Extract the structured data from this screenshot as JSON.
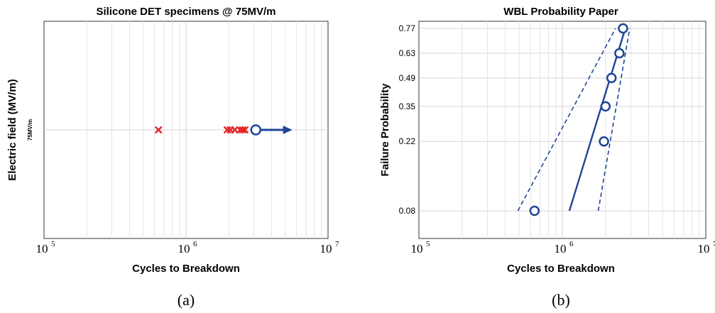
{
  "chart_data": [
    {
      "type": "scatter",
      "panel_label": "(a)",
      "title": "Silicone DET specimens @ 75MV/m",
      "xlabel": "Cycles to Breakdown",
      "ylabel": "Electric field (MV/m)",
      "x_scale": "log",
      "xlim": [
        100000,
        10000000
      ],
      "x_ticks": [
        {
          "base": "10",
          "exp": "5"
        },
        {
          "base": "10",
          "exp": "6"
        },
        {
          "base": "10",
          "exp": "7"
        }
      ],
      "y_tick_label": "75MV/m",
      "grid": true,
      "colors": {
        "failure": "#e8262a",
        "runout": "#1f4597"
      },
      "series": [
        {
          "marker": "x",
          "color": "#e8262a",
          "x": [
            640000,
            1950000,
            2050000,
            2200000,
            2400000,
            2500000,
            2600000
          ],
          "y": [
            75,
            75,
            75,
            75,
            75,
            75,
            75
          ]
        },
        {
          "marker": "o-arrow",
          "color": "#1f4597",
          "x": [
            3100000
          ],
          "y": [
            75
          ],
          "arrow_to": 5600000
        }
      ]
    },
    {
      "type": "scatter",
      "panel_label": "(b)",
      "title": "WBL Probability Paper",
      "xlabel": "Cycles to Breakdown",
      "ylabel": "Failure Probability",
      "x_scale": "log",
      "xlim": [
        100000,
        10000000
      ],
      "x_ticks": [
        {
          "base": "10",
          "exp": "5"
        },
        {
          "base": "10",
          "exp": "6"
        },
        {
          "base": "10",
          "exp": "7"
        }
      ],
      "y_tick_labels": [
        "0.08",
        "0.22",
        "0.35",
        "0.49",
        "0.63",
        "0.77"
      ],
      "grid": true,
      "colors": {
        "points": "#1f4597",
        "fit": "#1f4597"
      },
      "points": [
        {
          "x": 640000,
          "p": 0.08
        },
        {
          "x": 1950000,
          "p": 0.22
        },
        {
          "x": 2000000,
          "p": 0.35
        },
        {
          "x": 2200000,
          "p": 0.49
        },
        {
          "x": 2500000,
          "p": 0.63
        },
        {
          "x": 2650000,
          "p": 0.77
        }
      ],
      "fit_line": [
        {
          "x": 1120000,
          "p": 0.08
        },
        {
          "x": 2750000,
          "p": 0.77
        }
      ],
      "confidence_lower": [
        {
          "x": 490000,
          "p": 0.08
        },
        {
          "x": 2350000,
          "p": 0.77
        }
      ],
      "confidence_upper": [
        {
          "x": 1780000,
          "p": 0.08
        },
        {
          "x": 2950000,
          "p": 0.77
        }
      ]
    }
  ]
}
